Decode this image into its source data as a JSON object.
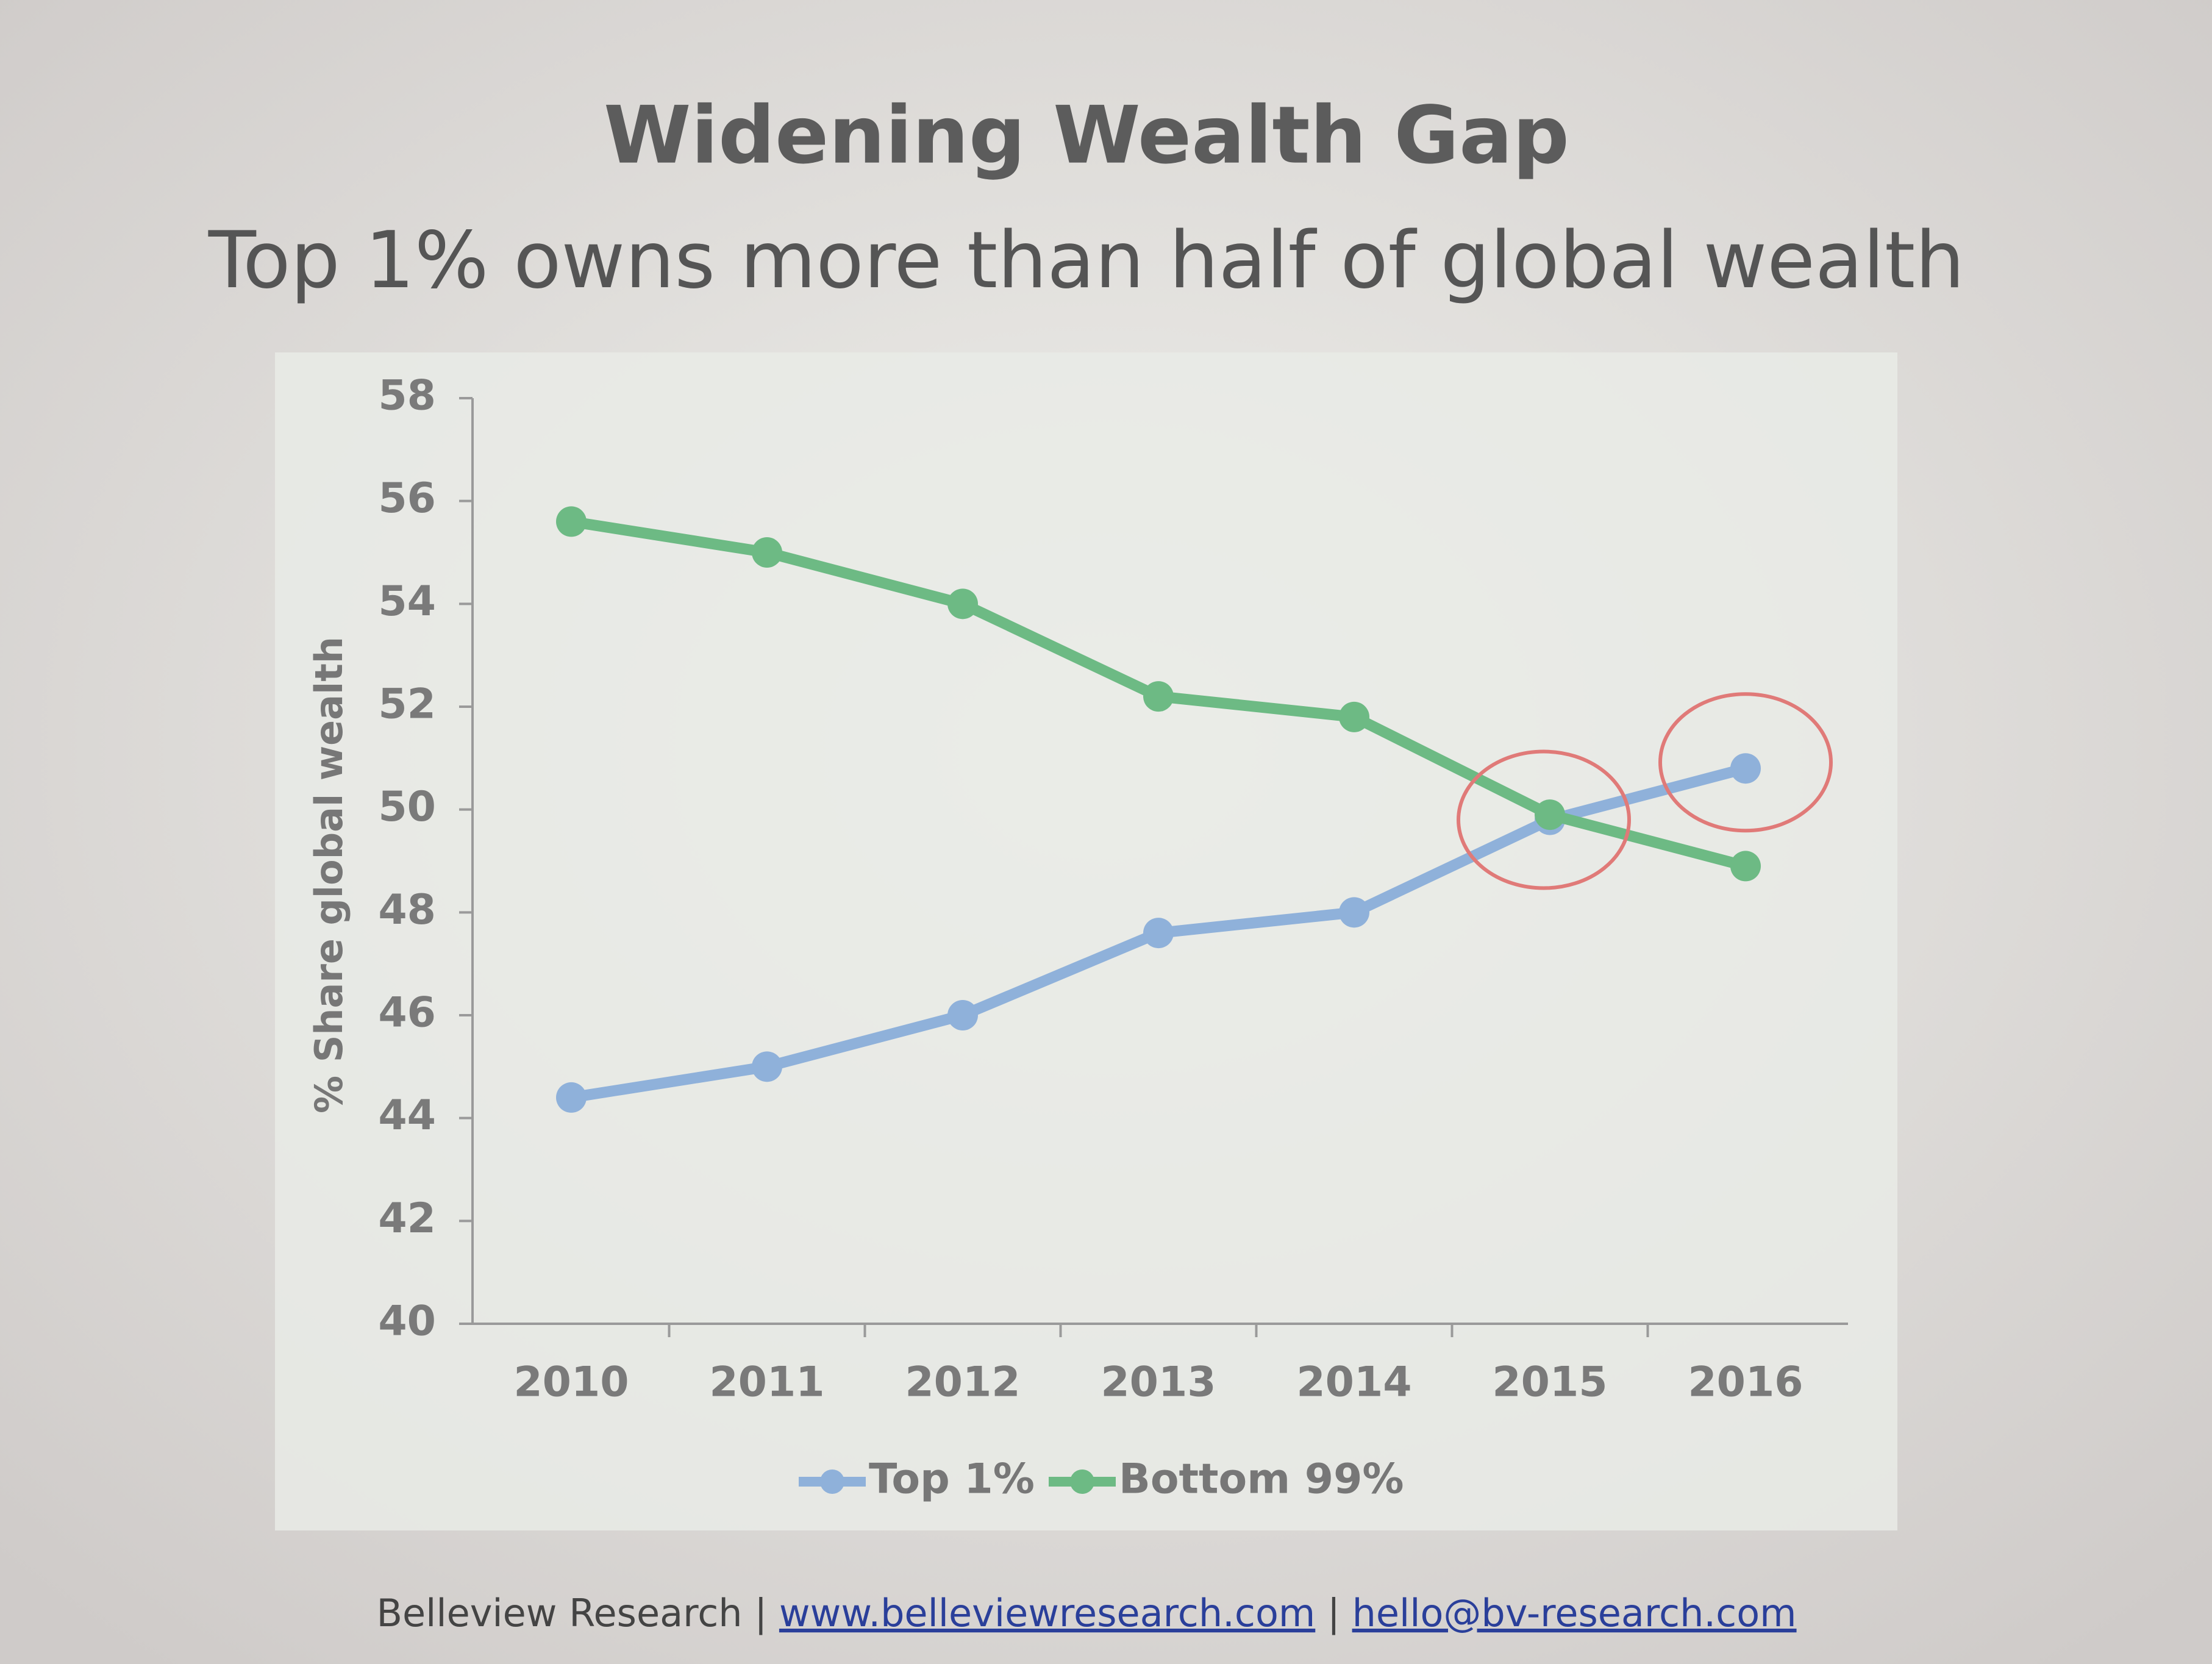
{
  "chart_data": {
    "type": "line",
    "title": "Widening Wealth Gap",
    "subtitle": "Top 1% owns more than half of global wealth",
    "y_label": "% Share global wealth",
    "categories": [
      "2010",
      "2011",
      "2012",
      "2013",
      "2014",
      "2015",
      "2016"
    ],
    "series": [
      {
        "name": "Top 1%",
        "color": "#8fb1da",
        "values": [
          44.4,
          45.0,
          46.0,
          47.6,
          48.0,
          49.8,
          50.8
        ]
      },
      {
        "name": "Bottom 99%",
        "color": "#6dba84",
        "values": [
          55.6,
          55.0,
          54.0,
          52.2,
          51.8,
          49.9,
          48.9
        ]
      }
    ],
    "ylim": [
      40,
      58
    ],
    "yticks": [
      40,
      42,
      44,
      46,
      48,
      50,
      52,
      54,
      56,
      58
    ],
    "legend": "bottom"
  },
  "footer": [
    "Belleview Research",
    "|",
    "www.belleviewresearch.com",
    "|",
    "hello@bv-research.com"
  ]
}
